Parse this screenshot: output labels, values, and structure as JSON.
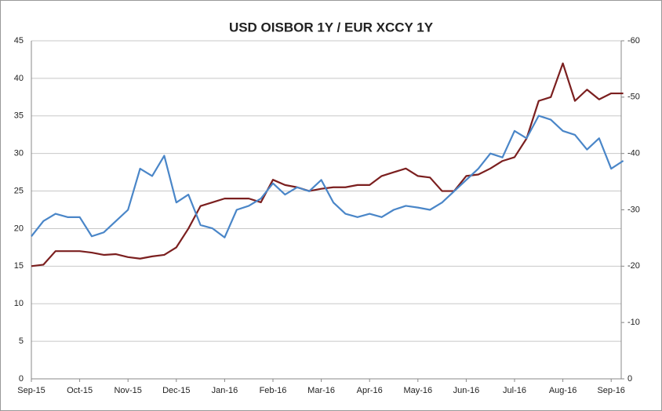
{
  "chart_data": {
    "type": "line",
    "title": "USD OISBOR  1Y   /  EUR XCCY 1Y",
    "categories": [
      "Sep-15",
      null,
      null,
      null,
      "Oct-15",
      null,
      null,
      null,
      "Nov-15",
      null,
      null,
      null,
      "Dec-15",
      null,
      null,
      null,
      "Jan-16",
      null,
      null,
      null,
      "Feb-16",
      null,
      null,
      null,
      "Mar-16",
      null,
      null,
      null,
      "Apr-16",
      null,
      null,
      null,
      "May-16",
      null,
      null,
      null,
      "Jun-16",
      null,
      null,
      null,
      "Jul-16",
      null,
      null,
      null,
      "Aug-16",
      null,
      null,
      null,
      "Sep-16",
      null
    ],
    "series": [
      {
        "color": "#7b1f1f",
        "values": [
          15,
          15.2,
          17,
          17,
          17,
          16.8,
          16.5,
          16.6,
          16.2,
          16,
          16.3,
          16.5,
          17.5,
          20,
          23,
          23.5,
          24,
          24,
          24,
          23.5,
          26.5,
          25.8,
          25.5,
          25,
          25.3,
          25.5,
          25.5,
          25.8,
          25.8,
          27,
          27.5,
          28,
          27,
          26.8,
          25,
          25,
          27,
          27.2,
          28,
          29,
          29.5,
          32,
          37,
          37.5,
          42,
          37,
          38.5,
          37.2,
          38,
          38
        ]
      },
      {
        "color": "#4a86c8",
        "axis": "y2",
        "values": [
          -25.3,
          -28,
          -29.3,
          -28.7,
          -28.7,
          -25.3,
          -26,
          -28,
          -30,
          -37.3,
          -36,
          -39.6,
          -31.3,
          -32.7,
          -27.3,
          -26.7,
          -25.1,
          -30,
          -30.7,
          -32,
          -34.7,
          -32.7,
          -34,
          -33.3,
          -35.3,
          -31.3,
          -29.3,
          -28.7,
          -29.3,
          -28.7,
          -30,
          -30.7,
          -30.4,
          -30,
          -31.3,
          -33.3,
          -35.3,
          -37.3,
          -40,
          -39.3,
          -44,
          -42.7,
          -46.7,
          -46,
          -44,
          -43.3,
          -40.7,
          -42.7,
          -37.3,
          -38.7
        ]
      }
    ],
    "ylim": [
      0,
      45
    ],
    "yticks": [
      0,
      5,
      10,
      15,
      20,
      25,
      30,
      35,
      40,
      45
    ],
    "y2lim": [
      0,
      -60
    ],
    "y2ticks": [
      0,
      -10,
      -20,
      -30,
      -40,
      -50,
      -60
    ],
    "grid": true
  }
}
